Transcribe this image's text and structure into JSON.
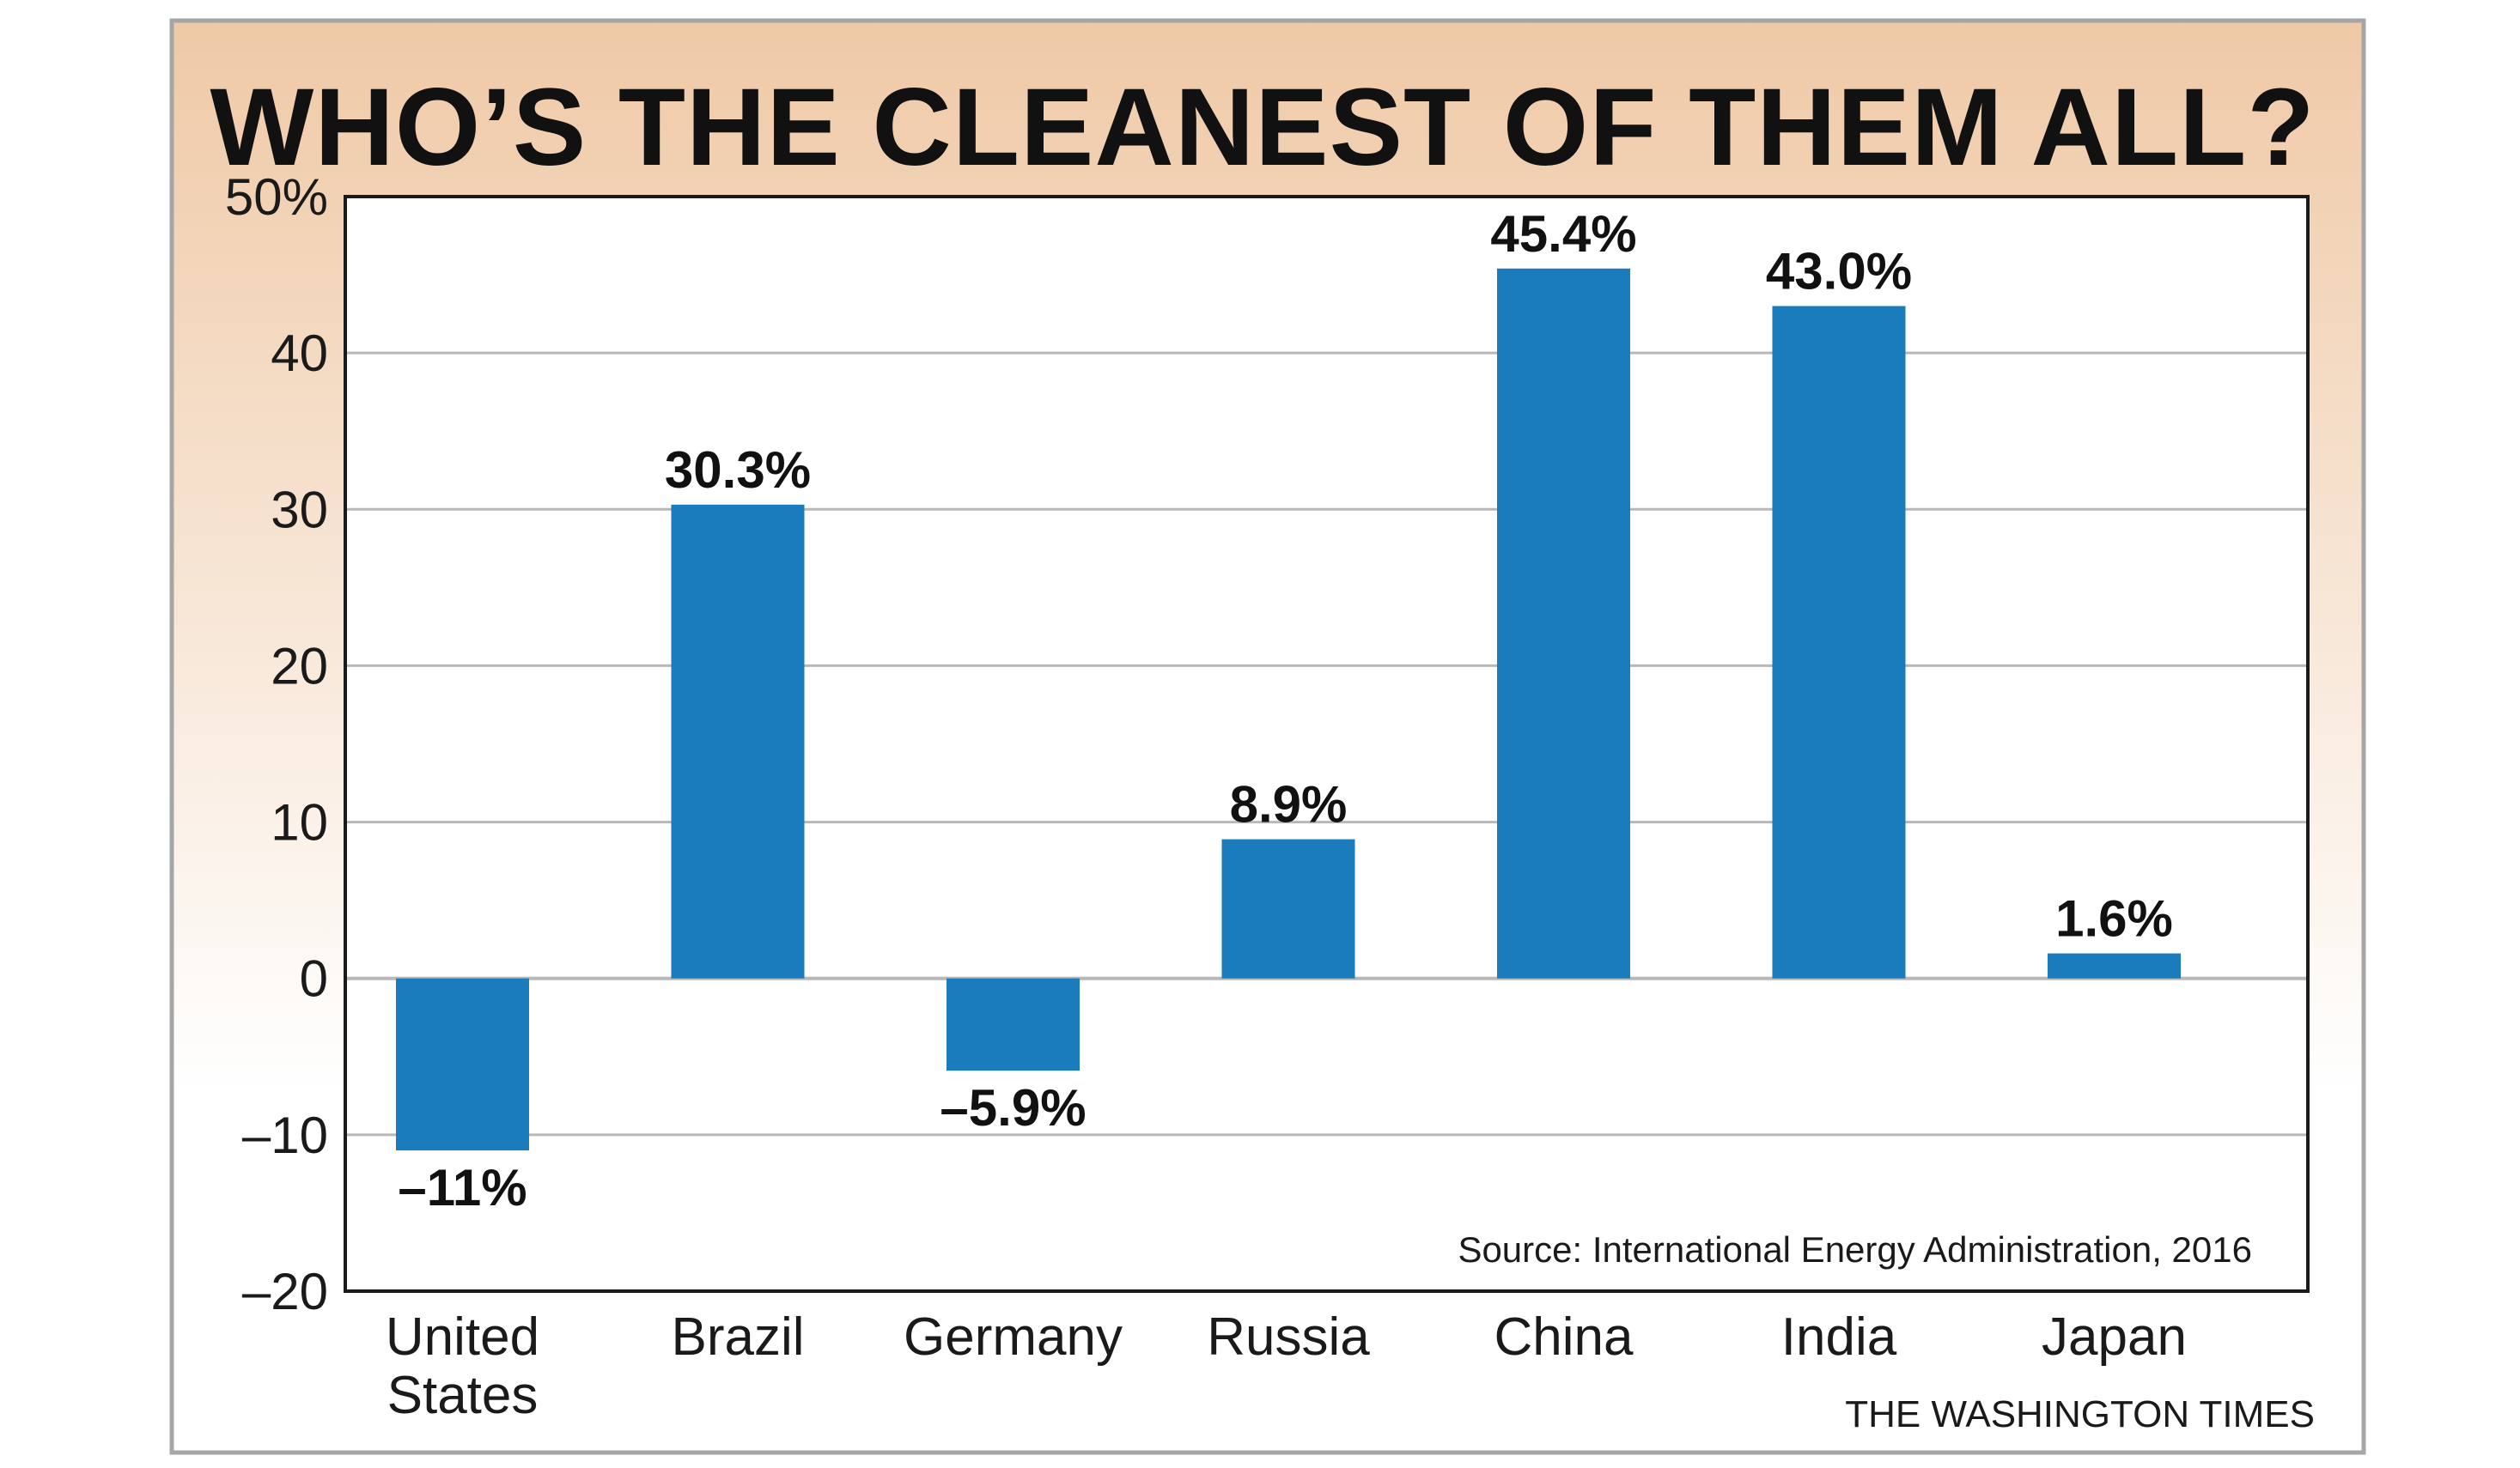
{
  "colors": {
    "bar": "#1a7bbd",
    "grid": "#b8b8b8",
    "frame": "#1a1a1a",
    "header_gradient_top": "#efc9a6",
    "header_gradient_bottom": "#ffffff",
    "outer_border": "#a6a6a6"
  },
  "chart_data": {
    "type": "bar",
    "title": "WHO’S THE CLEANEST OF THEM ALL?",
    "categories": [
      [
        "United",
        "States"
      ],
      [
        "Brazil"
      ],
      [
        "Germany"
      ],
      [
        "Russia"
      ],
      [
        "China"
      ],
      [
        "India"
      ],
      [
        "Japan"
      ]
    ],
    "values": [
      -11,
      30.3,
      -5.9,
      8.9,
      45.4,
      43.0,
      1.6
    ],
    "data_labels": [
      "–11%",
      "30.3%",
      "–5.9%",
      "8.9%",
      "45.4%",
      "43.0%",
      "1.6%"
    ],
    "ylim": [
      -20,
      50
    ],
    "yticks": [
      -20,
      -10,
      0,
      10,
      20,
      30,
      40,
      50
    ],
    "ytick_labels": [
      "–20",
      "–10",
      "0",
      "10",
      "20",
      "30",
      "40",
      "50%"
    ],
    "xlabel": "",
    "ylabel": "",
    "grid": true,
    "source": "Source: International Energy Administration, 2016",
    "credit": "THE WASHINGTON TIMES"
  }
}
